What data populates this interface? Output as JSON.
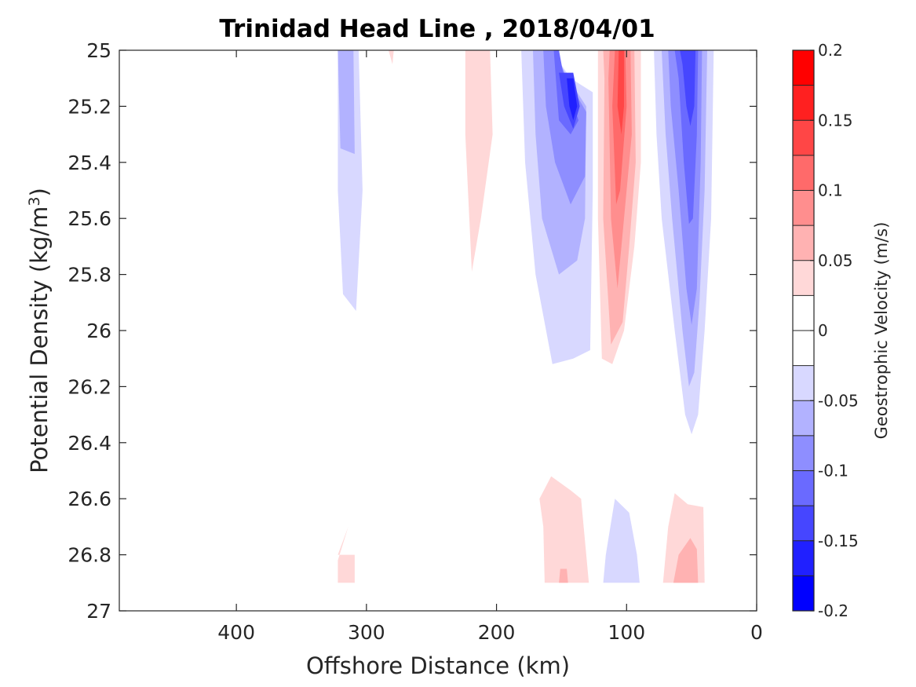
{
  "chart_data": {
    "type": "contour",
    "title": "Trinidad Head Line , 2018/04/01",
    "xlabel": "Offshore Distance (km)",
    "ylabel": "Potential Density (kg/m",
    "ylabel_sup": "3",
    "ylabel_close": ")",
    "xlim": [
      490,
      0
    ],
    "ylim": [
      25,
      27
    ],
    "x_reversed": true,
    "y_reversed": true,
    "xticks": [
      400,
      300,
      200,
      100,
      0
    ],
    "yticks": [
      25,
      25.2,
      25.4,
      25.6,
      25.8,
      26,
      26.2,
      26.4,
      26.6,
      26.8,
      27
    ],
    "grid": false,
    "colorbar": {
      "label": "Geostrophic Velocity (m/s)",
      "range": [
        -0.2,
        0.2
      ],
      "ticks": [
        "0.2",
        "0.15",
        "0.1",
        "0.05",
        "0",
        "-0.05",
        "-0.1",
        "-0.15",
        "-0.2"
      ],
      "tick_values": [
        0.2,
        0.15,
        0.1,
        0.05,
        0,
        -0.05,
        -0.1,
        -0.15,
        -0.2
      ],
      "levels": [
        -0.2,
        -0.175,
        -0.15,
        -0.125,
        -0.1,
        -0.075,
        -0.05,
        -0.025,
        0,
        0.025,
        0.05,
        0.075,
        0.1,
        0.125,
        0.15,
        0.175,
        0.2
      ],
      "colors": [
        "#0000ff",
        "#2020ff",
        "#4646ff",
        "#6a6aff",
        "#8e8eff",
        "#b2b2ff",
        "#d8d8ff",
        "#ffffff",
        "#ffffff",
        "#ffd8d8",
        "#ffb2b2",
        "#ff8e8e",
        "#ff6a6a",
        "#ff4646",
        "#ff2020",
        "#ff0000"
      ]
    },
    "regions": [
      {
        "level": -0.025,
        "points": [
          [
            322,
            25
          ],
          [
            306,
            25
          ],
          [
            303,
            25.5
          ],
          [
            308,
            25.93
          ],
          [
            318,
            25.87
          ],
          [
            322,
            25.5
          ]
        ]
      },
      {
        "level": -0.05,
        "points": [
          [
            322,
            25
          ],
          [
            310,
            25
          ],
          [
            309,
            25.37
          ],
          [
            320,
            25.35
          ]
        ]
      },
      {
        "level": 0.025,
        "points": [
          [
            283,
            25
          ],
          [
            279,
            25
          ],
          [
            280,
            25.05
          ]
        ]
      },
      {
        "level": 0.025,
        "points": [
          [
            224,
            25
          ],
          [
            205,
            25
          ],
          [
            203,
            25.3
          ],
          [
            212,
            25.6
          ],
          [
            219,
            25.79
          ],
          [
            224,
            25.3
          ]
        ]
      },
      {
        "level": -0.025,
        "points": [
          [
            181,
            25
          ],
          [
            158,
            25
          ],
          [
            143,
            25.1
          ],
          [
            126,
            25.15
          ],
          [
            126,
            25.5
          ],
          [
            128,
            26.07
          ],
          [
            141,
            26.1
          ],
          [
            157,
            26.12
          ],
          [
            170,
            25.8
          ],
          [
            178,
            25.4
          ]
        ]
      },
      {
        "level": -0.05,
        "points": [
          [
            172,
            25
          ],
          [
            158,
            25
          ],
          [
            145,
            25.1
          ],
          [
            131,
            25.2
          ],
          [
            132,
            25.6
          ],
          [
            138,
            25.75
          ],
          [
            152,
            25.8
          ],
          [
            165,
            25.6
          ],
          [
            170,
            25.3
          ]
        ]
      },
      {
        "level": -0.075,
        "points": [
          [
            164,
            25
          ],
          [
            155,
            25
          ],
          [
            146,
            25.1
          ],
          [
            131,
            25.22
          ],
          [
            132,
            25.45
          ],
          [
            143,
            25.55
          ],
          [
            155,
            25.4
          ],
          [
            162,
            25.2
          ]
        ]
      },
      {
        "level": -0.1,
        "points": [
          [
            156,
            25
          ],
          [
            152,
            25
          ],
          [
            148,
            25.1
          ],
          [
            137,
            25.25
          ],
          [
            143,
            25.3
          ],
          [
            152,
            25.25
          ]
        ]
      },
      {
        "level": -0.125,
        "points": [
          [
            152,
            25.08
          ],
          [
            141,
            25.08
          ],
          [
            136,
            25.2
          ],
          [
            141,
            25.28
          ],
          [
            148,
            25.2
          ]
        ]
      },
      {
        "level": -0.15,
        "points": [
          [
            146,
            25.1
          ],
          [
            141,
            25.1
          ],
          [
            138,
            25.2
          ],
          [
            141,
            25.25
          ],
          [
            144,
            25.2
          ]
        ]
      },
      {
        "level": 0.025,
        "points": [
          [
            122,
            25
          ],
          [
            89,
            25
          ],
          [
            89,
            25.4
          ],
          [
            94,
            25.7
          ],
          [
            102,
            26
          ],
          [
            111,
            26.12
          ],
          [
            119,
            26.1
          ],
          [
            122,
            25.6
          ]
        ]
      },
      {
        "level": 0.05,
        "points": [
          [
            118,
            25
          ],
          [
            94,
            25
          ],
          [
            93,
            25.4
          ],
          [
            98,
            25.7
          ],
          [
            103,
            25.97
          ],
          [
            112,
            26.05
          ],
          [
            118,
            25.6
          ],
          [
            117,
            25.1
          ]
        ]
      },
      {
        "level": 0.075,
        "points": [
          [
            113,
            25
          ],
          [
            97,
            25
          ],
          [
            96,
            25.3
          ],
          [
            102,
            25.6
          ],
          [
            107,
            25.85
          ],
          [
            112,
            25.6
          ],
          [
            114,
            25.1
          ]
        ]
      },
      {
        "level": 0.1,
        "points": [
          [
            109,
            25
          ],
          [
            101,
            25
          ],
          [
            100,
            25.2
          ],
          [
            105,
            25.5
          ],
          [
            108,
            25.55
          ],
          [
            111,
            25.2
          ]
        ]
      },
      {
        "level": 0.125,
        "points": [
          [
            106,
            25
          ],
          [
            102,
            25
          ],
          [
            102,
            25.2
          ],
          [
            104,
            25.3
          ],
          [
            107,
            25.2
          ]
        ]
      },
      {
        "level": -0.025,
        "points": [
          [
            79,
            25
          ],
          [
            33,
            25
          ],
          [
            35,
            25.6
          ],
          [
            40,
            26
          ],
          [
            45,
            26.3
          ],
          [
            50,
            26.37
          ],
          [
            55,
            26.3
          ],
          [
            63,
            26
          ],
          [
            73,
            25.6
          ],
          [
            77,
            25.3
          ]
        ]
      },
      {
        "level": -0.05,
        "points": [
          [
            73,
            25
          ],
          [
            38,
            25
          ],
          [
            40,
            25.5
          ],
          [
            44,
            25.9
          ],
          [
            48,
            26.15
          ],
          [
            52,
            26.2
          ],
          [
            57,
            26
          ],
          [
            65,
            25.6
          ],
          [
            70,
            25.3
          ]
        ]
      },
      {
        "level": -0.075,
        "points": [
          [
            68,
            25
          ],
          [
            42,
            25
          ],
          [
            43,
            25.4
          ],
          [
            46,
            25.85
          ],
          [
            50,
            25.98
          ],
          [
            54,
            25.85
          ],
          [
            60,
            25.5
          ],
          [
            66,
            25.2
          ]
        ]
      },
      {
        "level": -0.1,
        "points": [
          [
            63,
            25
          ],
          [
            45,
            25
          ],
          [
            46,
            25.3
          ],
          [
            49,
            25.6
          ],
          [
            52,
            25.62
          ],
          [
            56,
            25.4
          ],
          [
            60,
            25.1
          ]
        ]
      },
      {
        "level": -0.125,
        "points": [
          [
            59,
            25
          ],
          [
            47,
            25
          ],
          [
            48,
            25.2
          ],
          [
            51,
            25.27
          ],
          [
            54,
            25.2
          ],
          [
            57,
            25.05
          ]
        ]
      },
      {
        "level": 0.025,
        "points": [
          [
            322,
            26.8
          ],
          [
            309,
            26.8
          ],
          [
            309,
            26.9
          ],
          [
            322,
            26.9
          ],
          [
            322,
            26.82
          ],
          [
            314,
            26.7
          ]
        ]
      },
      {
        "level": 0.025,
        "points": [
          [
            167,
            26.6
          ],
          [
            158,
            26.52
          ],
          [
            143,
            26.57
          ],
          [
            135,
            26.6
          ],
          [
            129,
            26.9
          ],
          [
            163,
            26.9
          ],
          [
            164,
            26.7
          ]
        ]
      },
      {
        "level": 0.05,
        "points": [
          [
            151,
            26.85
          ],
          [
            146,
            26.85
          ],
          [
            145,
            26.9
          ],
          [
            152,
            26.9
          ]
        ]
      },
      {
        "level": -0.025,
        "points": [
          [
            118,
            26.9
          ],
          [
            90,
            26.9
          ],
          [
            92,
            26.8
          ],
          [
            98,
            26.65
          ],
          [
            109,
            26.6
          ],
          [
            116,
            26.8
          ]
        ]
      },
      {
        "level": 0.025,
        "points": [
          [
            72,
            26.9
          ],
          [
            40,
            26.9
          ],
          [
            41,
            26.63
          ],
          [
            53,
            26.62
          ],
          [
            63,
            26.58
          ],
          [
            68,
            26.7
          ]
        ]
      },
      {
        "level": 0.05,
        "points": [
          [
            64,
            26.9
          ],
          [
            45,
            26.9
          ],
          [
            46,
            26.78
          ],
          [
            51,
            26.74
          ],
          [
            60,
            26.8
          ]
        ]
      }
    ]
  }
}
